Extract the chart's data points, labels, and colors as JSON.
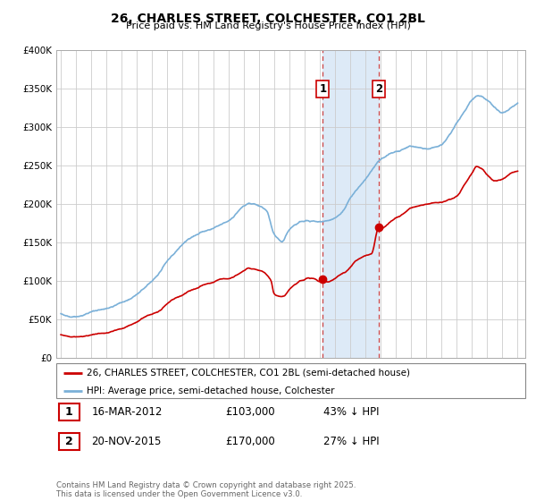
{
  "title": "26, CHARLES STREET, COLCHESTER, CO1 2BL",
  "subtitle": "Price paid vs. HM Land Registry's House Price Index (HPI)",
  "legend_line1": "26, CHARLES STREET, COLCHESTER, CO1 2BL (semi-detached house)",
  "legend_line2": "HPI: Average price, semi-detached house, Colchester",
  "annotation1_date": "16-MAR-2012",
  "annotation1_price": "£103,000",
  "annotation1_hpi": "43% ↓ HPI",
  "annotation1_year": 2012.21,
  "annotation1_value": 103000,
  "annotation2_date": "20-NOV-2015",
  "annotation2_price": "£170,000",
  "annotation2_hpi": "27% ↓ HPI",
  "annotation2_year": 2015.89,
  "annotation2_value": 170000,
  "price_color": "#cc0000",
  "hpi_color": "#7ab0d8",
  "shade_color": "#ddeaf7",
  "footer": "Contains HM Land Registry data © Crown copyright and database right 2025.\nThis data is licensed under the Open Government Licence v3.0.",
  "ylim": [
    0,
    400000
  ],
  "yticks": [
    0,
    50000,
    100000,
    150000,
    200000,
    250000,
    300000,
    350000,
    400000
  ],
  "xlim_start": 1995.0,
  "xlim_end": 2025.5
}
